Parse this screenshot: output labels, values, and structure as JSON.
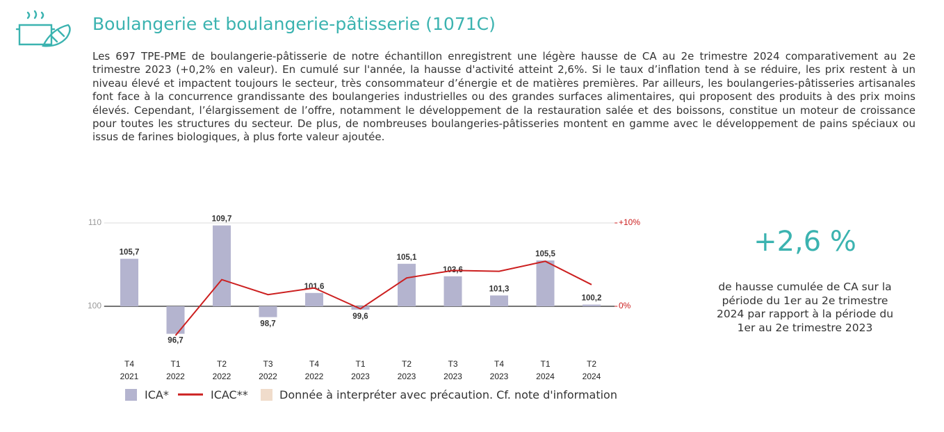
{
  "header": {
    "title": "Boulangerie et boulangerie-pâtisserie (1071C)"
  },
  "paragraph": "Les 697 TPE-PME de boulangerie-pâtisserie de notre échantillon enregistrent une légère hausse de CA au 2e trimestre 2024 comparativement au 2e trimestre 2023 (+0,2% en valeur). En cumulé sur l'année, la hausse d'activité atteint 2,6%. Si le taux d’inflation tend à se réduire, les prix restent à un niveau élevé et impactent toujours le secteur, très consommateur d’énergie et de matières premières. Par ailleurs, les boulangeries-pâtisseries artisanales font face à la concurrence grandissante des boulangeries industrielles ou des grandes surfaces alimentaires, qui proposent des produits à des prix moins élevés. Cependant, l’élargissement de l’offre, notamment le développement de la restauration salée et des boissons, constitue un moteur de croissance pour toutes les structures du secteur. De plus, de nombreuses boulangeries-pâtisseries montent en gamme avec le développement de pains spéciaux ou issus de farines biologiques, à plus forte valeur ajoutée.",
  "highlight": {
    "value": "+2,6 %",
    "caption": "de hausse cumulée de CA sur la période du 1er au 2e trimestre 2024 par rapport à la période du 1er au 2e trimestre 2023"
  },
  "chart_data": {
    "type": "bar",
    "categories": [
      "T4 2021",
      "T1 2022",
      "T2 2022",
      "T3 2022",
      "T4 2022",
      "T1 2023",
      "T2 2023",
      "T3 2023",
      "T4 2023",
      "T1 2024",
      "T2 2024"
    ],
    "series": [
      {
        "name": "ICA*",
        "color": "#b4b4cf",
        "values": [
          105.7,
          96.7,
          109.7,
          98.7,
          101.6,
          99.6,
          105.1,
          103.6,
          101.3,
          105.5,
          100.2
        ],
        "value_labels": [
          "105,7",
          "96,7",
          "109,7",
          "98,7",
          "101,6",
          "99,6",
          "105,1",
          "103,6",
          "101,3",
          "105,5",
          "100,2"
        ]
      },
      {
        "name": "ICAC**",
        "color": "#cc1f1f",
        "type": "line",
        "axis": "y2",
        "values": [
          null,
          -3.5,
          3.2,
          1.4,
          2.2,
          -0.3,
          3.4,
          4.3,
          4.2,
          5.4,
          2.6
        ]
      }
    ],
    "legend_extra": {
      "name": "Donnée à interpréter avec précaution. Cf. note d'information",
      "color": "#f0dccb"
    },
    "ylim": [
      96,
      113
    ],
    "yticks": [
      100,
      110
    ],
    "y2lim": [
      -4,
      13
    ],
    "y2ticks": [
      {
        "value": 0,
        "label": "0%"
      },
      {
        "value": 10,
        "label": "+10%"
      }
    ]
  }
}
